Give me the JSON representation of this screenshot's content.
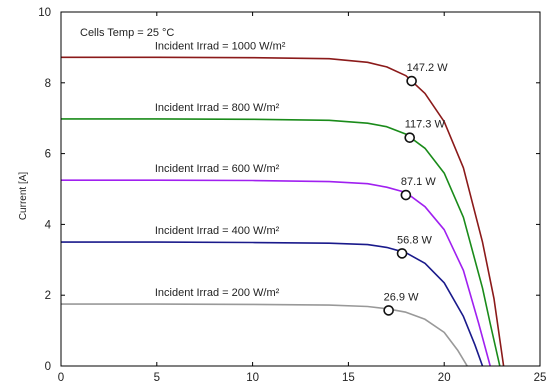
{
  "chart_data": {
    "type": "line",
    "title": "",
    "xlabel": "",
    "ylabel": "Current [A]",
    "xlim": [
      0,
      25
    ],
    "ylim": [
      0,
      10
    ],
    "xticks": [
      0,
      5,
      10,
      15,
      20,
      25
    ],
    "yticks": [
      0,
      2,
      4,
      6,
      8,
      10
    ],
    "grid": false,
    "annotation_temp": "Cells Temp = 25 °C",
    "series": [
      {
        "label": "Incident Irrad = 1000 W/m²",
        "color": "#8b1a1a",
        "points": [
          [
            0,
            8.72
          ],
          [
            5,
            8.72
          ],
          [
            10,
            8.71
          ],
          [
            14,
            8.68
          ],
          [
            16,
            8.58
          ],
          [
            17,
            8.45
          ],
          [
            18,
            8.2
          ],
          [
            19,
            7.7
          ],
          [
            20,
            6.9
          ],
          [
            21,
            5.6
          ],
          [
            22,
            3.5
          ],
          [
            22.6,
            1.9
          ],
          [
            23.1,
            0
          ]
        ],
        "mpp": {
          "x": 18.3,
          "y": 8.05,
          "label": "147.2 W"
        }
      },
      {
        "label": "Incident Irrad = 800 W/m²",
        "color": "#1a8b1a",
        "points": [
          [
            0,
            6.98
          ],
          [
            5,
            6.98
          ],
          [
            10,
            6.97
          ],
          [
            14,
            6.94
          ],
          [
            16,
            6.86
          ],
          [
            17,
            6.76
          ],
          [
            18,
            6.55
          ],
          [
            19,
            6.15
          ],
          [
            20,
            5.45
          ],
          [
            21,
            4.2
          ],
          [
            22,
            2.2
          ],
          [
            22.4,
            1.2
          ],
          [
            22.9,
            0
          ]
        ],
        "mpp": {
          "x": 18.2,
          "y": 6.45,
          "label": "117.3 W"
        }
      },
      {
        "label": "Incident Irrad = 600 W/m²",
        "color": "#a020f0",
        "points": [
          [
            0,
            5.25
          ],
          [
            5,
            5.25
          ],
          [
            10,
            5.24
          ],
          [
            14,
            5.21
          ],
          [
            16,
            5.15
          ],
          [
            17,
            5.05
          ],
          [
            18,
            4.9
          ],
          [
            19,
            4.5
          ],
          [
            20,
            3.85
          ],
          [
            21,
            2.7
          ],
          [
            21.8,
            1.2
          ],
          [
            22.4,
            0
          ]
        ],
        "mpp": {
          "x": 18.0,
          "y": 4.83,
          "label": "87.1 W"
        }
      },
      {
        "label": "Incident Irrad = 400 W/m²",
        "color": "#1a1a8b",
        "points": [
          [
            0,
            3.5
          ],
          [
            5,
            3.5
          ],
          [
            10,
            3.49
          ],
          [
            14,
            3.47
          ],
          [
            16,
            3.43
          ],
          [
            17,
            3.35
          ],
          [
            18,
            3.2
          ],
          [
            19,
            2.9
          ],
          [
            20,
            2.35
          ],
          [
            21,
            1.4
          ],
          [
            21.6,
            0.6
          ],
          [
            22.0,
            0
          ]
        ],
        "mpp": {
          "x": 17.8,
          "y": 3.18,
          "label": "56.8 W"
        }
      },
      {
        "label": "Incident Irrad = 200 W/m²",
        "color": "#999999",
        "points": [
          [
            0,
            1.75
          ],
          [
            5,
            1.75
          ],
          [
            10,
            1.74
          ],
          [
            14,
            1.72
          ],
          [
            16,
            1.68
          ],
          [
            17,
            1.62
          ],
          [
            18,
            1.52
          ],
          [
            19,
            1.32
          ],
          [
            20,
            0.95
          ],
          [
            20.7,
            0.45
          ],
          [
            21.2,
            0
          ]
        ],
        "mpp": {
          "x": 17.1,
          "y": 1.57,
          "label": "26.9 W"
        }
      }
    ]
  }
}
